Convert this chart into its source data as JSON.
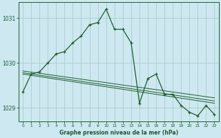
{
  "background_color": "#cde8f0",
  "grid_color": "#aacccc",
  "line_color": "#1a5c2a",
  "title": "Graphe pression niveau de la mer (hPa)",
  "xlim": [
    -0.5,
    23.5
  ],
  "ylim": [
    1028.7,
    1031.35
  ],
  "yticks": [
    1029,
    1030,
    1031
  ],
  "xticks": [
    0,
    1,
    2,
    3,
    4,
    5,
    6,
    7,
    8,
    9,
    10,
    11,
    12,
    13,
    14,
    15,
    16,
    17,
    18,
    19,
    20,
    21,
    22,
    23
  ],
  "series1_x": [
    0,
    1,
    2,
    3,
    4,
    5,
    6,
    7,
    8,
    9,
    10,
    11,
    12,
    13,
    14,
    15,
    16,
    17,
    18,
    19,
    20,
    21,
    22,
    23
  ],
  "series1_y": [
    1029.35,
    1029.75,
    1029.8,
    1030.0,
    1030.2,
    1030.25,
    1030.45,
    1030.6,
    1030.85,
    1030.9,
    1031.2,
    1030.75,
    1030.75,
    1030.45,
    1029.1,
    1029.65,
    1029.75,
    1029.3,
    1029.3,
    1029.05,
    1028.9,
    1028.82,
    1029.05,
    1028.85
  ],
  "series2_x": [
    0,
    23
  ],
  "series2_y": [
    1029.82,
    1029.22
  ],
  "series3_x": [
    0,
    23
  ],
  "series3_y": [
    1029.78,
    1029.15
  ],
  "series4_x": [
    0,
    23
  ],
  "series4_y": [
    1029.75,
    1029.1
  ]
}
